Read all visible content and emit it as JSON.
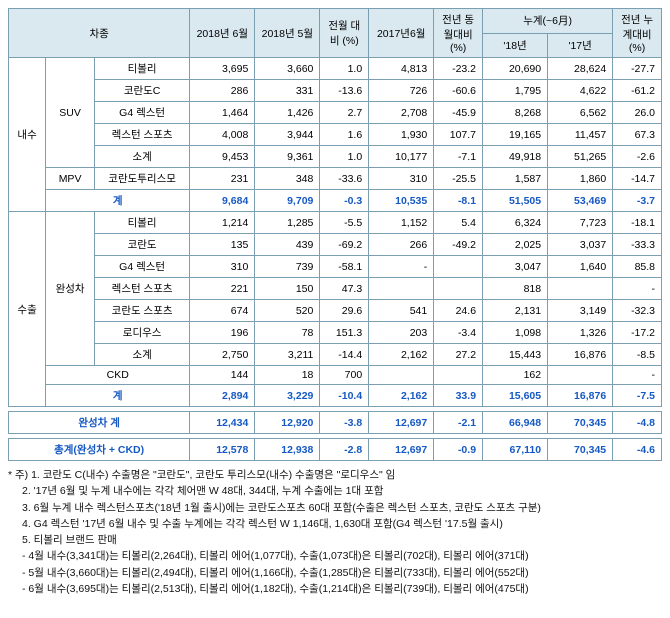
{
  "header": {
    "group": "차종",
    "c_2018_6": "2018년\n6월",
    "c_2018_5": "2018년\n5월",
    "mom": "전월\n대비\n(%)",
    "c_2017_6": "2017년6월",
    "yoy": "전년\n동월대비\n(%)",
    "cum": "누계(~6月)",
    "cum_18": "'18년",
    "cum_17": "'17년",
    "cum_yoy": "전년\n누계대비\n(%)"
  },
  "cat": {
    "domestic": "내수",
    "suv": "SUV",
    "mpv": "MPV",
    "export": "수출",
    "cbv": "완성차",
    "ckd": "CKD",
    "subtotal": "소계",
    "total": "계",
    "grand_cbv": "완성차 계",
    "grand_all": "총계(완성차 + CKD)"
  },
  "rows": {
    "d_tivoli": {
      "name": "티볼리",
      "a": "3,695",
      "b": "3,660",
      "mom": "1.0",
      "c": "4,813",
      "yoy": "-23.2",
      "d": "20,690",
      "e": "28,624",
      "f": "-27.7"
    },
    "d_korandoC": {
      "name": "코란도C",
      "a": "286",
      "b": "331",
      "mom": "-13.6",
      "c": "726",
      "yoy": "-60.6",
      "d": "1,795",
      "e": "4,622",
      "f": "-61.2"
    },
    "d_g4": {
      "name": "G4 렉스턴",
      "a": "1,464",
      "b": "1,426",
      "mom": "2.7",
      "c": "2,708",
      "yoy": "-45.9",
      "d": "8,268",
      "e": "6,562",
      "f": "26.0"
    },
    "d_rexsport": {
      "name": "렉스턴 스포츠",
      "a": "4,008",
      "b": "3,944",
      "mom": "1.6",
      "c": "1,930",
      "yoy": "107.7",
      "d": "19,165",
      "e": "11,457",
      "f": "67.3"
    },
    "d_suv_sub": {
      "a": "9,453",
      "b": "9,361",
      "mom": "1.0",
      "c": "10,177",
      "yoy": "-7.1",
      "d": "49,918",
      "e": "51,265",
      "f": "-2.6"
    },
    "d_turismo": {
      "name": "코란도투리스모",
      "a": "231",
      "b": "348",
      "mom": "-33.6",
      "c": "310",
      "yoy": "-25.5",
      "d": "1,587",
      "e": "1,860",
      "f": "-14.7"
    },
    "d_total": {
      "a": "9,684",
      "b": "9,709",
      "mom": "-0.3",
      "c": "10,535",
      "yoy": "-8.1",
      "d": "51,505",
      "e": "53,469",
      "f": "-3.7"
    },
    "e_tivoli": {
      "name": "티볼리",
      "a": "1,214",
      "b": "1,285",
      "mom": "-5.5",
      "c": "1,152",
      "yoy": "5.4",
      "d": "6,324",
      "e": "7,723",
      "f": "-18.1"
    },
    "e_korando": {
      "name": "코란도",
      "a": "135",
      "b": "439",
      "mom": "-69.2",
      "c": "266",
      "yoy": "-49.2",
      "d": "2,025",
      "e": "3,037",
      "f": "-33.3"
    },
    "e_g4": {
      "name": "G4 렉스턴",
      "a": "310",
      "b": "739",
      "mom": "-58.1",
      "c": "-",
      "yoy": "",
      "d": "3,047",
      "e": "1,640",
      "f": "85.8"
    },
    "e_rexsport": {
      "name": "렉스턴 스포츠",
      "a": "221",
      "b": "150",
      "mom": "47.3",
      "c": "",
      "yoy": "",
      "d": "818",
      "e": "",
      "f": "-"
    },
    "e_korsport": {
      "name": "코란도 스포츠",
      "a": "674",
      "b": "520",
      "mom": "29.6",
      "c": "541",
      "yoy": "24.6",
      "d": "2,131",
      "e": "3,149",
      "f": "-32.3"
    },
    "e_rodius": {
      "name": "로디우스",
      "a": "196",
      "b": "78",
      "mom": "151.3",
      "c": "203",
      "yoy": "-3.4",
      "d": "1,098",
      "e": "1,326",
      "f": "-17.2"
    },
    "e_sub": {
      "a": "2,750",
      "b": "3,211",
      "mom": "-14.4",
      "c": "2,162",
      "yoy": "27.2",
      "d": "15,443",
      "e": "16,876",
      "f": "-8.5"
    },
    "e_ckd": {
      "a": "144",
      "b": "18",
      "mom": "700",
      "c": "",
      "yoy": "",
      "d": "162",
      "e": "",
      "f": "-"
    },
    "e_total": {
      "a": "2,894",
      "b": "3,229",
      "mom": "-10.4",
      "c": "2,162",
      "yoy": "33.9",
      "d": "15,605",
      "e": "16,876",
      "f": "-7.5"
    },
    "g_cbv": {
      "a": "12,434",
      "b": "12,920",
      "mom": "-3.8",
      "c": "12,697",
      "yoy": "-2.1",
      "d": "66,948",
      "e": "70,345",
      "f": "-4.8"
    },
    "g_all": {
      "a": "12,578",
      "b": "12,938",
      "mom": "-2.8",
      "c": "12,697",
      "yoy": "-0.9",
      "d": "67,110",
      "e": "70,345",
      "f": "-4.6"
    }
  },
  "notes": {
    "n1": "* 주) 1. 코란도 C(내수) 수출명은 \"코란도\", 코란도 투리스모(내수) 수출명은 \"로디우스\" 임",
    "n2": "2. '17년 6월 및 누계 내수에는 각각 체어맨 W 48대, 344대, 누계 수출에는 1대 포함",
    "n3": "3. 6월 누계 내수 렉스턴스포츠('18년 1월 출시)에는 코란도스포츠 60대 포함(수출은 렉스턴 스포츠, 코란도 스포츠 구분)",
    "n4": "4. G4 렉스턴 '17년 6월 내수 및 수출 누계에는 각각 렉스턴 W 1,146대, 1,630대 포함(G4 렉스턴 '17.5월 출시)",
    "n5": "5. 티볼리 브랜드 판매",
    "n5a": "- 4월 내수(3,341대)는 티볼리(2,264대), 티볼리 에어(1,077대), 수출(1,073대)은 티볼리(702대), 티볼리 에어(371대)",
    "n5b": "- 5월 내수(3,660대)는 티볼리(2,494대), 티볼리 에어(1,166대), 수출(1,285대)은 티볼리(733대), 티볼리 에어(552대)",
    "n5c": "- 6월 내수(3,695대)는 티볼리(2,513대), 티볼리 에어(1,182대), 수출(1,214대)은 티볼리(739대), 티볼리 에어(475대)"
  }
}
